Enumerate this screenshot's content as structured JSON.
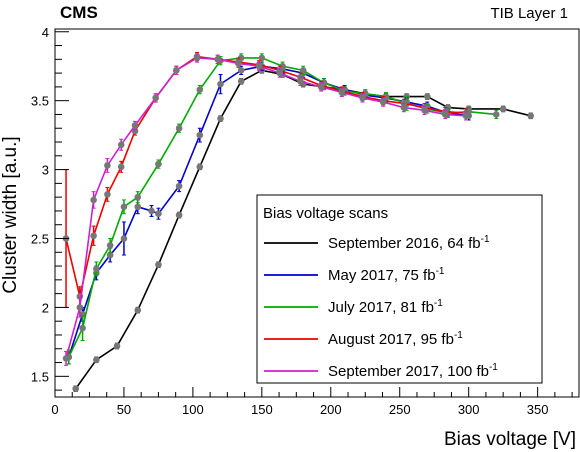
{
  "chart_data": {
    "type": "line",
    "experiment_label": "CMS",
    "plot_label": "TIB Layer 1",
    "xlabel": "Bias voltage [V]",
    "ylabel": "Cluster width [a.u.]",
    "xlim": [
      0,
      380
    ],
    "ylim": [
      1.35,
      4.02
    ],
    "x_ticks": [
      0,
      50,
      100,
      150,
      200,
      250,
      300,
      350
    ],
    "y_ticks": [
      1.5,
      2,
      2.5,
      3,
      3.5,
      4
    ],
    "y_tick_labels": [
      "1.5",
      "2",
      "2.5",
      "3",
      "3.5",
      "4"
    ],
    "grid": false,
    "legend": {
      "title": "Bias voltage scans",
      "placement": "bottom-right",
      "entries": [
        {
          "text": "September 2016, 64 fb",
          "sup": "-1"
        },
        {
          "text": "May 2017, 75 fb",
          "sup": "-1"
        },
        {
          "text": "July 2017, 81 fb",
          "sup": "-1"
        },
        {
          "text": "August 2017, 95 fb",
          "sup": "-1"
        },
        {
          "text": "September 2017, 100 fb",
          "sup": "-1"
        }
      ]
    },
    "series": [
      {
        "name": "September 2016, 64 fb-1",
        "color": "#000000",
        "x": [
          15,
          30,
          45,
          60,
          75,
          90,
          105,
          120,
          135,
          150,
          165,
          180,
          195,
          210,
          225,
          240,
          255,
          270,
          285,
          300,
          325,
          345
        ],
        "y": [
          1.41,
          1.62,
          1.72,
          1.98,
          2.31,
          2.67,
          3.02,
          3.37,
          3.64,
          3.72,
          3.69,
          3.62,
          3.6,
          3.58,
          3.55,
          3.53,
          3.53,
          3.53,
          3.45,
          3.44,
          3.44,
          3.39
        ],
        "err": [
          0.02,
          0.02,
          0.02,
          0.02,
          0.02,
          0.02,
          0.02,
          0.02,
          0.02,
          0.02,
          0.02,
          0.02,
          0.02,
          0.02,
          0.02,
          0.02,
          0.02,
          0.02,
          0.02,
          0.02,
          0.02,
          0.02
        ]
      },
      {
        "name": "May 2017, 75 fb-1",
        "color": "#0000cc",
        "x": [
          10,
          20,
          30,
          40,
          50,
          60,
          70,
          75,
          90,
          105,
          120,
          135,
          150,
          165,
          180,
          195,
          210,
          225,
          240,
          255,
          270,
          285,
          300
        ],
        "y": [
          1.64,
          1.95,
          2.25,
          2.38,
          2.5,
          2.73,
          2.7,
          2.68,
          2.88,
          3.25,
          3.62,
          3.72,
          3.75,
          3.73,
          3.7,
          3.63,
          3.58,
          3.54,
          3.52,
          3.49,
          3.46,
          3.41,
          3.39
        ],
        "err": [
          0.05,
          0.05,
          0.05,
          0.05,
          0.12,
          0.05,
          0.04,
          0.04,
          0.04,
          0.05,
          0.07,
          0.03,
          0.03,
          0.03,
          0.03,
          0.03,
          0.03,
          0.03,
          0.03,
          0.03,
          0.03,
          0.03,
          0.03
        ]
      },
      {
        "name": "July 2017, 81 fb-1",
        "color": "#00aa00",
        "x": [
          10,
          20,
          30,
          40,
          50,
          60,
          75,
          90,
          105,
          120,
          135,
          150,
          165,
          180,
          195,
          210,
          225,
          240,
          255,
          270,
          285,
          300,
          320
        ],
        "y": [
          1.64,
          1.85,
          2.28,
          2.45,
          2.73,
          2.8,
          3.04,
          3.3,
          3.58,
          3.79,
          3.81,
          3.81,
          3.75,
          3.72,
          3.63,
          3.57,
          3.55,
          3.53,
          3.48,
          3.44,
          3.41,
          3.42,
          3.4
        ],
        "err": [
          0.05,
          0.09,
          0.05,
          0.05,
          0.05,
          0.04,
          0.03,
          0.03,
          0.03,
          0.03,
          0.03,
          0.03,
          0.03,
          0.03,
          0.03,
          0.03,
          0.03,
          0.03,
          0.05,
          0.03,
          0.03,
          0.03,
          0.03
        ]
      },
      {
        "name": "August 2017, 95 fb-1",
        "color": "#ee0000",
        "x": [
          8,
          18,
          28,
          38,
          48,
          58,
          73,
          88,
          103,
          118,
          133,
          148,
          163,
          178,
          193,
          208,
          223,
          238,
          253,
          268,
          283,
          298
        ],
        "y": [
          2.5,
          2.08,
          2.52,
          2.82,
          3.02,
          3.28,
          3.52,
          3.72,
          3.82,
          3.8,
          3.78,
          3.76,
          3.72,
          3.67,
          3.61,
          3.57,
          3.53,
          3.5,
          3.48,
          3.45,
          3.42,
          3.41
        ],
        "err": [
          0.5,
          0.07,
          0.07,
          0.05,
          0.04,
          0.03,
          0.03,
          0.03,
          0.03,
          0.03,
          0.03,
          0.03,
          0.03,
          0.03,
          0.03,
          0.03,
          0.03,
          0.03,
          0.03,
          0.03,
          0.03,
          0.03
        ]
      },
      {
        "name": "September 2017, 100 fb-1",
        "color": "#cc22cc",
        "x": [
          8,
          18,
          28,
          38,
          48,
          58,
          73,
          88,
          103,
          118,
          133,
          148,
          163,
          178,
          193,
          208,
          223,
          238,
          253,
          268,
          283,
          298
        ],
        "y": [
          1.63,
          2.0,
          2.78,
          3.03,
          3.18,
          3.32,
          3.52,
          3.72,
          3.81,
          3.8,
          3.77,
          3.75,
          3.7,
          3.64,
          3.6,
          3.56,
          3.52,
          3.49,
          3.45,
          3.43,
          3.4,
          3.39
        ],
        "err": [
          0.05,
          0.07,
          0.06,
          0.05,
          0.04,
          0.03,
          0.03,
          0.03,
          0.03,
          0.03,
          0.03,
          0.03,
          0.03,
          0.03,
          0.03,
          0.03,
          0.03,
          0.03,
          0.03,
          0.03,
          0.03,
          0.03
        ]
      }
    ]
  }
}
